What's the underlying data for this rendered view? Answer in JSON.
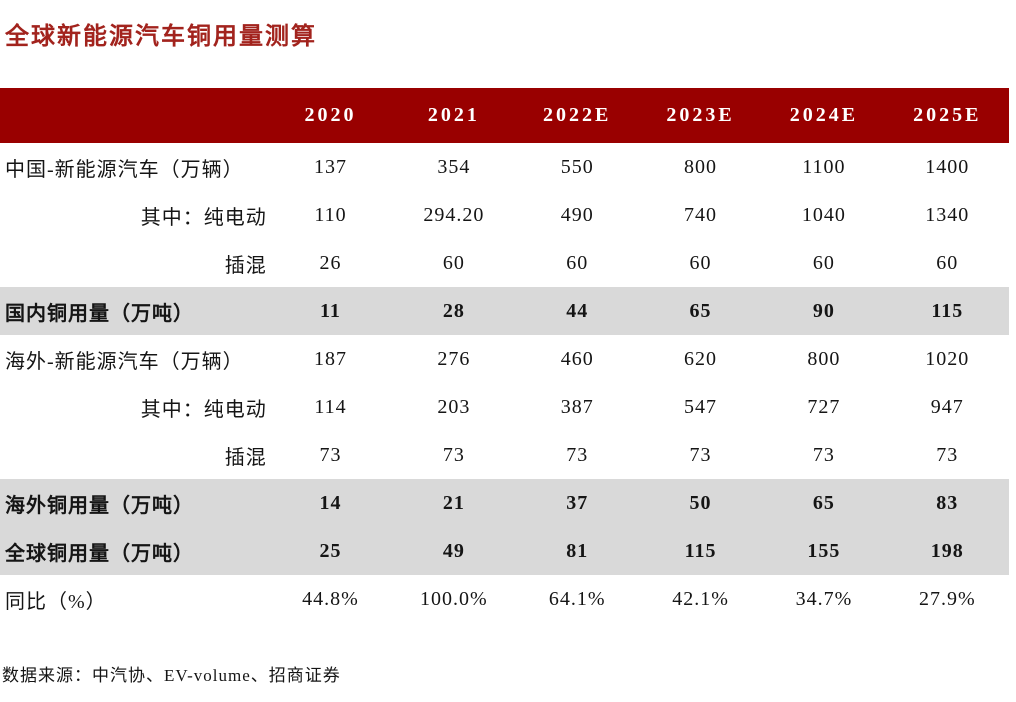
{
  "title": "全球新能源汽车铜用量测算",
  "source": "数据来源：中汽协、EV-volume、招商证券",
  "colors": {
    "title_text": "#A2231D",
    "header_bg": "#990000",
    "header_text": "#FFFFFF",
    "highlight_bg": "#D9D9D9",
    "body_text": "#151515"
  },
  "chart_data": {
    "type": "table",
    "title": "全球新能源汽车铜用量测算",
    "columns": [
      "2020",
      "2021",
      "2022E",
      "2023E",
      "2024E",
      "2025E"
    ],
    "rows": [
      {
        "label": "中国-新能源汽车（万辆）",
        "align": "left",
        "style": "normal",
        "values": [
          "137",
          "354",
          "550",
          "800",
          "1100",
          "1400"
        ]
      },
      {
        "label": "其中：纯电动",
        "align": "right",
        "style": "normal",
        "values": [
          "110",
          "294.20",
          "490",
          "740",
          "1040",
          "1340"
        ]
      },
      {
        "label": "插混",
        "align": "right",
        "style": "normal",
        "values": [
          "26",
          "60",
          "60",
          "60",
          "60",
          "60"
        ]
      },
      {
        "label": "国内铜用量（万吨）",
        "align": "left",
        "style": "highlight",
        "values": [
          "11",
          "28",
          "44",
          "65",
          "90",
          "115"
        ]
      },
      {
        "label": "海外-新能源汽车（万辆）",
        "align": "left",
        "style": "normal",
        "values": [
          "187",
          "276",
          "460",
          "620",
          "800",
          "1020"
        ]
      },
      {
        "label": "其中：纯电动",
        "align": "right",
        "style": "normal",
        "values": [
          "114",
          "203",
          "387",
          "547",
          "727",
          "947"
        ]
      },
      {
        "label": "插混",
        "align": "right",
        "style": "normal",
        "values": [
          "73",
          "73",
          "73",
          "73",
          "73",
          "73"
        ]
      },
      {
        "label": "海外铜用量（万吨）",
        "align": "left",
        "style": "highlight",
        "values": [
          "14",
          "21",
          "37",
          "50",
          "65",
          "83"
        ]
      },
      {
        "label": "全球铜用量（万吨）",
        "align": "left",
        "style": "highlight",
        "values": [
          "25",
          "49",
          "81",
          "115",
          "155",
          "198"
        ]
      },
      {
        "label": "同比（%）",
        "align": "left",
        "style": "normal",
        "values": [
          "44.8%",
          "100.0%",
          "64.1%",
          "42.1%",
          "34.7%",
          "27.9%"
        ]
      }
    ]
  }
}
